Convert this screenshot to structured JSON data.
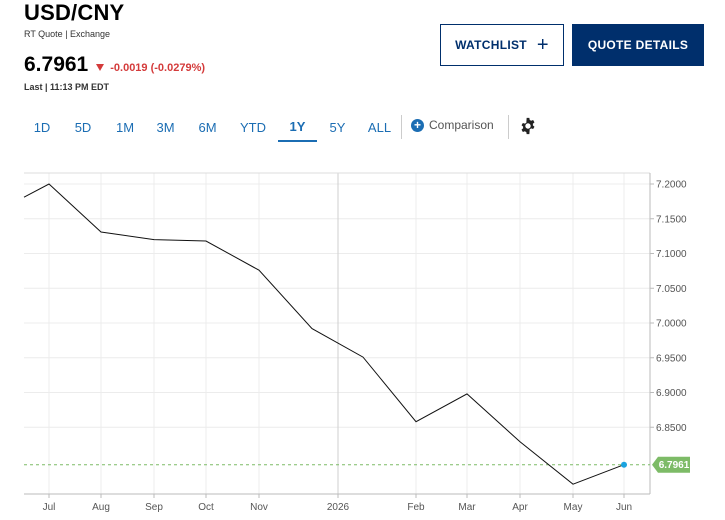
{
  "header": {
    "symbol": "USD/CNY",
    "subtitle": "RT Quote | Exchange",
    "price": "6.7961",
    "change": "-0.0019 (-0.0279%)",
    "last": "Last | 11:13 PM EDT"
  },
  "buttons": {
    "watchlist": "WATCHLIST",
    "quote_details": "QUOTE DETAILS"
  },
  "ranges": [
    {
      "label": "1D",
      "active": false
    },
    {
      "label": "5D",
      "active": false
    },
    {
      "label": "1M",
      "active": false
    },
    {
      "label": "3M",
      "active": false
    },
    {
      "label": "6M",
      "active": false
    },
    {
      "label": "YTD",
      "active": false
    },
    {
      "label": "1Y",
      "active": true
    },
    {
      "label": "5Y",
      "active": false
    },
    {
      "label": "ALL",
      "active": false
    }
  ],
  "comparison_label": "Comparison",
  "icons": {
    "change_arrow": "down-triangle-icon",
    "add": "plus-icon",
    "comparison": "plus-circle-icon",
    "settings": "gear-icon"
  },
  "colors": {
    "brand": "#002f6c",
    "link": "#1b6db3",
    "negative": "#d43b3b",
    "last_price_badge": "#7dbb67",
    "last_price_dot": "#1aa3e0"
  },
  "chart_data": {
    "type": "line",
    "title": "",
    "xlabel": "",
    "ylabel": "",
    "ylim": [
      6.77,
      7.21
    ],
    "y_ticks": [
      "7.2000",
      "7.1500",
      "7.1000",
      "7.0500",
      "7.0000",
      "6.9500",
      "6.9000",
      "6.8500"
    ],
    "x_ticks": [
      "Jul",
      "Aug",
      "Sep",
      "Oct",
      "Nov",
      "2026",
      "Feb",
      "Mar",
      "Apr",
      "May",
      "Jun"
    ],
    "grid": true,
    "series": [
      {
        "values": [
          {
            "x": "Jun",
            "y": 7.181
          },
          {
            "x": "Jul",
            "y": 7.2
          },
          {
            "x": "Aug",
            "y": 7.131
          },
          {
            "x": "Sep",
            "y": 7.12
          },
          {
            "x": "Oct",
            "y": 7.118
          },
          {
            "x": "Nov",
            "y": 7.076
          },
          {
            "x": "Dec",
            "y": 6.992
          },
          {
            "x": "2026",
            "y": 6.951
          },
          {
            "x": "Feb",
            "y": 6.858
          },
          {
            "x": "Mar",
            "y": 6.898
          },
          {
            "x": "Apr",
            "y": 6.829
          },
          {
            "x": "May",
            "y": 6.768
          },
          {
            "x": "Jun",
            "y": 6.7961
          }
        ]
      }
    ],
    "last_value": "6.7961"
  }
}
